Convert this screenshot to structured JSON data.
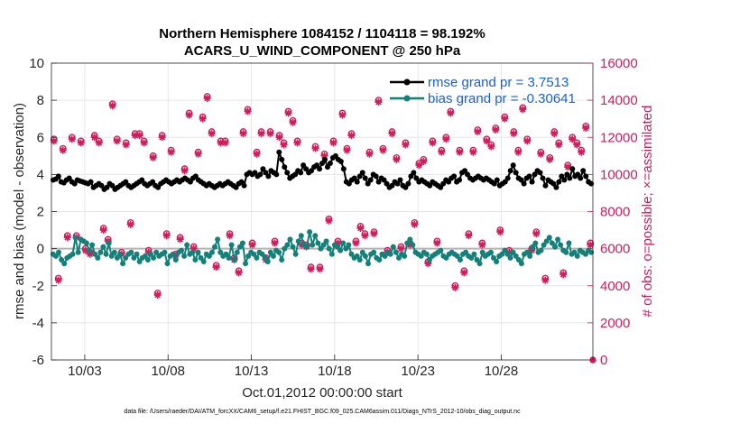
{
  "chart_data": {
    "type": "line",
    "title_line1": "Northern Hemisphere 1084152 / 1104118 = 98.192%",
    "title_line2": "ACARS_U_WIND_COMPONENT @ 250 hPa",
    "xlabel": "Oct.01,2012 00:00:00 start",
    "ylabel_left": "rmse and bias (model - observation)",
    "ylabel_right": "# of obs: o=possible; ×=assimilated",
    "footer": "data file: /Users/raeder/DAI/ATM_forcXX/CAM6_setup/f.e21.FHIST_BGC.f09_025.CAM6assim.011/Diags_NTrS_2012-10/obs_diag_output.nc",
    "x_range_days": [
      0,
      32.5
    ],
    "x_ticks": [
      {
        "day": 2,
        "label": "10/03"
      },
      {
        "day": 7,
        "label": "10/08"
      },
      {
        "day": 12,
        "label": "10/13"
      },
      {
        "day": 17,
        "label": "10/18"
      },
      {
        "day": 22,
        "label": "10/23"
      },
      {
        "day": 27,
        "label": "10/28"
      }
    ],
    "ylim_left": [
      -6,
      10
    ],
    "yticks_left": [
      "-6",
      "-4",
      "-2",
      "0",
      "2",
      "4",
      "6",
      "8",
      "10"
    ],
    "ylim_right": [
      0,
      16000
    ],
    "yticks_right": [
      "0",
      "2000",
      "4000",
      "6000",
      "8000",
      "10000",
      "12000",
      "14000",
      "16000"
    ],
    "legend": {
      "position": "top-right",
      "rmse_label": "rmse grand pr = 3.7513",
      "bias_label": "bias grand pr = -0.30641"
    },
    "colors": {
      "rmse": "#000000",
      "bias": "#12817a",
      "obs": "#d01c5b",
      "zero_line": "#b3b3b3",
      "legend_text": "#1a5fd6"
    },
    "rmse": [
      3.7,
      3.75,
      3.9,
      3.6,
      3.55,
      3.7,
      3.8,
      3.6,
      3.5,
      3.7,
      3.65,
      3.6,
      3.55,
      3.5,
      3.6,
      3.3,
      3.4,
      3.5,
      3.4,
      3.2,
      3.3,
      3.5,
      3.4,
      3.2,
      3.3,
      3.4,
      3.5,
      3.6,
      3.4,
      3.3,
      3.4,
      3.5,
      3.6,
      3.7,
      3.5,
      3.4,
      3.5,
      3.6,
      3.4,
      3.3,
      3.5,
      3.6,
      3.7,
      3.6,
      3.5,
      3.6,
      3.7,
      3.6,
      3.7,
      3.8,
      3.7,
      3.6,
      3.8,
      3.9,
      3.7,
      3.6,
      3.5,
      3.4,
      3.5,
      3.4,
      3.3,
      3.4,
      3.5,
      3.4,
      3.5,
      3.6,
      3.5,
      3.4,
      3.3,
      3.5,
      3.6,
      3.4,
      4.0,
      4.1,
      4.0,
      4.1,
      3.9,
      4.0,
      4.3,
      4.1,
      3.9,
      4.2,
      4.1,
      4.0,
      5.2,
      4.8,
      4.4,
      4.1,
      3.8,
      3.9,
      4.0,
      4.2,
      4.1,
      4.5,
      4.3,
      4.1,
      4.2,
      4.4,
      4.5,
      4.3,
      4.6,
      4.8,
      4.4,
      4.6,
      4.9,
      5.0,
      4.8,
      4.7,
      4.3,
      3.6,
      3.5,
      3.7,
      3.8,
      3.6,
      3.9,
      4.1,
      3.8,
      3.5,
      3.7,
      4.0,
      3.9,
      3.6,
      3.8,
      3.7,
      3.5,
      3.3,
      3.4,
      3.6,
      3.5,
      3.7,
      3.4,
      3.3,
      3.5,
      3.9,
      4.1,
      3.8,
      3.6,
      3.7,
      3.6,
      3.5,
      3.4,
      3.6,
      3.5,
      3.4,
      3.3,
      3.5,
      3.7,
      3.6,
      3.8,
      3.9,
      3.6,
      3.7,
      4.1,
      4.2,
      4.0,
      3.8,
      3.7,
      3.8,
      3.9,
      3.8,
      3.7,
      3.8,
      3.7,
      3.6,
      3.5,
      3.7,
      3.4,
      3.5,
      3.6,
      3.8,
      4.2,
      4.5,
      4.1,
      3.8,
      3.7,
      3.5,
      3.8,
      3.9,
      3.6,
      4.0,
      4.2,
      4.1,
      3.8,
      3.4,
      3.7,
      3.6,
      3.5,
      3.3,
      3.6,
      3.9,
      3.7,
      4.0,
      3.8,
      4.3,
      3.9,
      4.0,
      3.8,
      4.2,
      3.9,
      3.6,
      3.5
    ],
    "bias": [
      -0.3,
      -0.4,
      -0.2,
      -0.6,
      -0.8,
      -0.5,
      -0.4,
      -0.3,
      0.6,
      -0.2,
      0.5,
      0.4,
      0.3,
      -0.1,
      0.2,
      -0.3,
      -0.5,
      -0.2,
      0.1,
      -0.3,
      0.3,
      -0.4,
      -0.2,
      -0.5,
      -0.3,
      -0.8,
      -0.5,
      -0.3,
      -0.2,
      -0.5,
      -0.3,
      -0.7,
      -0.5,
      -0.4,
      -0.6,
      -0.3,
      -0.5,
      -0.2,
      -0.4,
      -0.3,
      -0.2,
      -0.8,
      -0.4,
      -0.3,
      -0.6,
      -0.2,
      -0.1,
      -0.4,
      0.2,
      -0.3,
      -0.2,
      -0.6,
      -0.2,
      -0.5,
      -0.7,
      -0.3,
      -0.4,
      -0.2,
      0.1,
      0.5,
      -0.2,
      -0.4,
      -0.3,
      -0.5,
      0.2,
      -0.6,
      -0.2,
      0.1,
      0.3,
      -0.8,
      -0.4,
      -0.2,
      -0.3,
      -0.5,
      -0.2,
      -0.3,
      -0.5,
      -0.7,
      -0.2,
      -0.4,
      -0.1,
      -0.2,
      -0.6,
      0.0,
      0.2,
      0.5,
      0.1,
      -0.3,
      0.4,
      0.7,
      0.2,
      0.1,
      0.9,
      0.2,
      0.7,
      0.3,
      0.0,
      0.2,
      0.4,
      0.0,
      -0.3,
      0.2,
      0.1,
      -0.1,
      0.3,
      0.0,
      0.2,
      -0.3,
      -0.5,
      -0.4,
      -0.6,
      -0.2,
      -0.4,
      -0.8,
      -0.3,
      -0.2,
      -0.5,
      -0.6,
      -0.3,
      -0.4,
      -0.2,
      -0.3,
      0.1,
      -0.2,
      -0.5,
      -0.3,
      -0.4,
      0.3,
      0.5,
      0.2,
      -0.2,
      -0.3,
      -0.4,
      -0.2,
      -0.3,
      -0.6,
      -0.4,
      -0.3,
      -0.2,
      -0.1,
      -0.4,
      -0.5,
      -0.3,
      -0.2,
      -0.3,
      -0.4,
      -0.6,
      -0.3,
      -0.2,
      -0.4,
      -0.5,
      -0.3,
      -0.6,
      -0.8,
      -0.2,
      -0.4,
      -0.3,
      -0.2,
      -0.5,
      -0.7,
      -0.4,
      -0.3,
      -0.1,
      -0.3,
      -0.5,
      -0.2,
      -0.4,
      -0.6,
      -0.8,
      -0.3,
      -0.2,
      -0.4,
      0.1,
      0.3,
      -0.2,
      -0.1,
      0.2,
      0.4,
      0.6,
      0.3,
      0.1,
      0.5,
      0.2,
      -0.1,
      -0.2,
      0.3,
      -0.3,
      -0.2,
      -0.4,
      -0.1,
      -0.2,
      -0.3,
      -0.1,
      -0.2
    ],
    "obs_possible": [
      11900,
      4400,
      11400,
      6700,
      12000,
      6700,
      11800,
      6000,
      5800,
      12100,
      11800,
      7100,
      6500,
      13800,
      11900,
      5800,
      11700,
      7400,
      12200,
      12200,
      11800,
      5900,
      11000,
      3600,
      12100,
      6800,
      11300,
      5700,
      6600,
      10300,
      13300,
      6100,
      11200,
      13100,
      14200,
      12300,
      5100,
      11800,
      11800,
      6800,
      5500,
      4800,
      12300,
      13500,
      6300,
      11200,
      12300,
      5500,
      12300,
      6400,
      12100,
      11700,
      13400,
      12900,
      11800,
      6300,
      6200,
      5000,
      11500,
      5000,
      11100,
      7600,
      11800,
      6400,
      13300,
      11400,
      12200,
      6400,
      7200,
      6800,
      11200,
      6900,
      14000,
      11400,
      5900,
      12300,
      10900,
      6100,
      11700,
      6300,
      7400,
      10600,
      10800,
      5300,
      11800,
      6400,
      11300,
      12000,
      13400,
      4000,
      11300,
      4800,
      6800,
      11300,
      12400,
      6300,
      11900,
      11600,
      12500,
      7000,
      13100,
      5900,
      12300,
      11300,
      13600,
      11900,
      6000,
      6900,
      11200,
      4400,
      10900,
      12300,
      11700,
      4700,
      10500,
      12000,
      11700,
      11300,
      12600,
      6300
    ],
    "obs_assimilated": [
      11800,
      4300,
      11300,
      6600,
      11900,
      6600,
      11700,
      5900,
      5700,
      12000,
      11700,
      7000,
      6400,
      13700,
      11800,
      5700,
      11600,
      7300,
      12100,
      12100,
      11700,
      5800,
      10900,
      3500,
      12000,
      6700,
      11200,
      5600,
      6500,
      10200,
      13200,
      6000,
      11100,
      13000,
      14100,
      12200,
      5000,
      11700,
      11700,
      6700,
      5400,
      4700,
      12200,
      13400,
      6200,
      11100,
      12200,
      5400,
      12200,
      6300,
      12000,
      11600,
      13300,
      12800,
      11700,
      6200,
      6100,
      4900,
      11400,
      4900,
      11000,
      7500,
      11700,
      6300,
      13200,
      11300,
      12100,
      6300,
      7100,
      6700,
      11100,
      6800,
      13900,
      11300,
      5800,
      12200,
      10800,
      6000,
      11600,
      6200,
      7300,
      10500,
      10700,
      5200,
      11700,
      6300,
      11200,
      11900,
      13300,
      3900,
      11200,
      4700,
      6700,
      11200,
      12300,
      6200,
      11800,
      11500,
      12400,
      6900,
      13000,
      5800,
      12200,
      11200,
      13500,
      11800,
      5900,
      6800,
      11100,
      4300,
      10800,
      12200,
      11600,
      4600,
      10400,
      11900,
      11600,
      11200,
      12500,
      6200
    ]
  }
}
